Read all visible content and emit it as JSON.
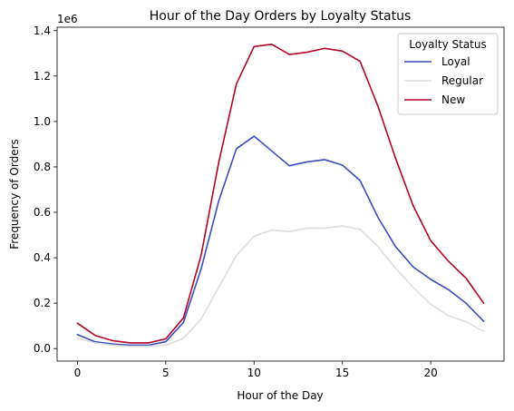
{
  "chart_data": {
    "type": "line",
    "title": "Hour of the Day Orders by Loyalty Status",
    "xlabel": "Hour of the Day",
    "ylabel": "Frequency of Orders",
    "y_offset_label": "1e6",
    "xlim": [
      -1.15,
      24.15
    ],
    "ylim": [
      -0.055,
      1.415
    ],
    "x_ticks": [
      0,
      5,
      10,
      15,
      20
    ],
    "y_ticks": [
      0.0,
      0.2,
      0.4,
      0.6,
      0.8,
      1.0,
      1.2,
      1.4
    ],
    "y_tick_labels": [
      "0.0",
      "0.2",
      "0.4",
      "0.6",
      "0.8",
      "1.0",
      "1.2",
      "1.4"
    ],
    "grid": false,
    "legend": {
      "title": "Loyalty Status",
      "placement": "top-right"
    },
    "x": [
      0,
      1,
      2,
      3,
      4,
      5,
      6,
      7,
      8,
      9,
      10,
      11,
      12,
      13,
      14,
      15,
      16,
      17,
      18,
      19,
      20,
      21,
      22,
      23
    ],
    "series": [
      {
        "name": "Loyal",
        "color": "#3a4cc0",
        "values": [
          0.062,
          0.03,
          0.02,
          0.015,
          0.015,
          0.03,
          0.115,
          0.35,
          0.65,
          0.88,
          0.935,
          0.87,
          0.805,
          0.822,
          0.832,
          0.808,
          0.74,
          0.58,
          0.45,
          0.36,
          0.305,
          0.26,
          0.2,
          0.12
        ]
      },
      {
        "name": "Regular",
        "color": "#dddddd",
        "values": [
          0.045,
          0.025,
          0.015,
          0.01,
          0.01,
          0.015,
          0.045,
          0.13,
          0.27,
          0.41,
          0.495,
          0.522,
          0.515,
          0.53,
          0.53,
          0.54,
          0.525,
          0.45,
          0.355,
          0.27,
          0.195,
          0.145,
          0.118,
          0.075
        ]
      },
      {
        "name": "New",
        "color": "#b40426",
        "values": [
          0.112,
          0.058,
          0.035,
          0.025,
          0.025,
          0.043,
          0.135,
          0.41,
          0.82,
          1.165,
          1.33,
          1.34,
          1.295,
          1.305,
          1.322,
          1.31,
          1.265,
          1.07,
          0.84,
          0.63,
          0.475,
          0.385,
          0.31,
          0.2
        ]
      }
    ]
  }
}
